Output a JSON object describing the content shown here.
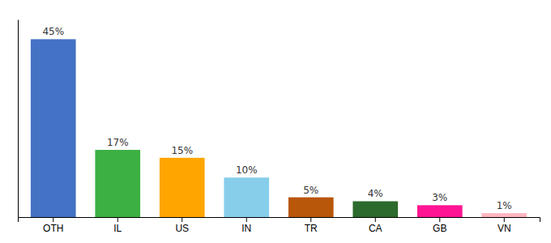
{
  "chart_data": {
    "type": "bar",
    "categories": [
      "OTH",
      "IL",
      "US",
      "IN",
      "TR",
      "CA",
      "GB",
      "VN"
    ],
    "values": [
      45,
      17,
      15,
      10,
      5,
      4,
      3,
      1
    ],
    "value_labels": [
      "45%",
      "17%",
      "15%",
      "10%",
      "5%",
      "4%",
      "3%",
      "1%"
    ],
    "colors": [
      "#4472C4",
      "#3CB043",
      "#FFA500",
      "#87CEEB",
      "#B8560A",
      "#2D6A2D",
      "#FF1493",
      "#FFB6C1"
    ],
    "ylim": [
      0,
      50
    ],
    "data_labels": true,
    "tick_labels": "x"
  }
}
